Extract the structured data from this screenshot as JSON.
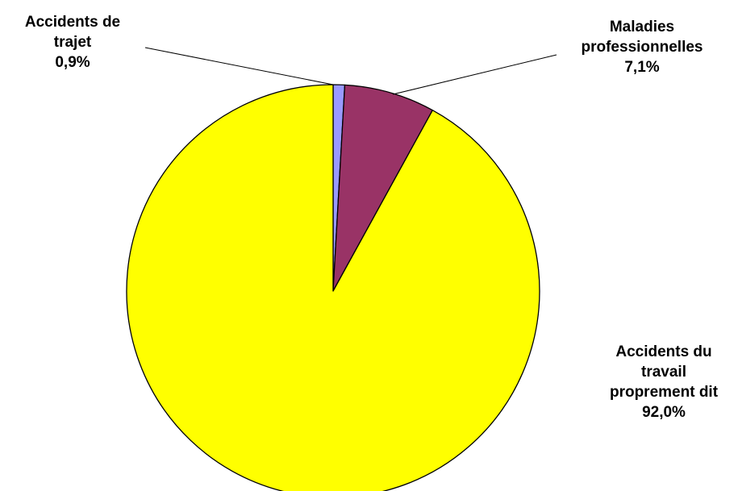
{
  "chart_data": {
    "type": "pie",
    "title": "",
    "start_angle_deg": 0,
    "direction": "clockwise",
    "slices": [
      {
        "label_lines": [
          "Accidents de",
          "trajet"
        ],
        "value_label": "0,9%",
        "value": 0.9,
        "color": "#9999ff"
      },
      {
        "label_lines": [
          "Maladies",
          "professionnelles"
        ],
        "value_label": "7,1%",
        "value": 7.1,
        "color": "#993366"
      },
      {
        "label_lines": [
          "Accidents du",
          "travail",
          "proprement dit"
        ],
        "value_label": "92,0%",
        "value": 92.0,
        "color": "#ffff00"
      }
    ]
  }
}
